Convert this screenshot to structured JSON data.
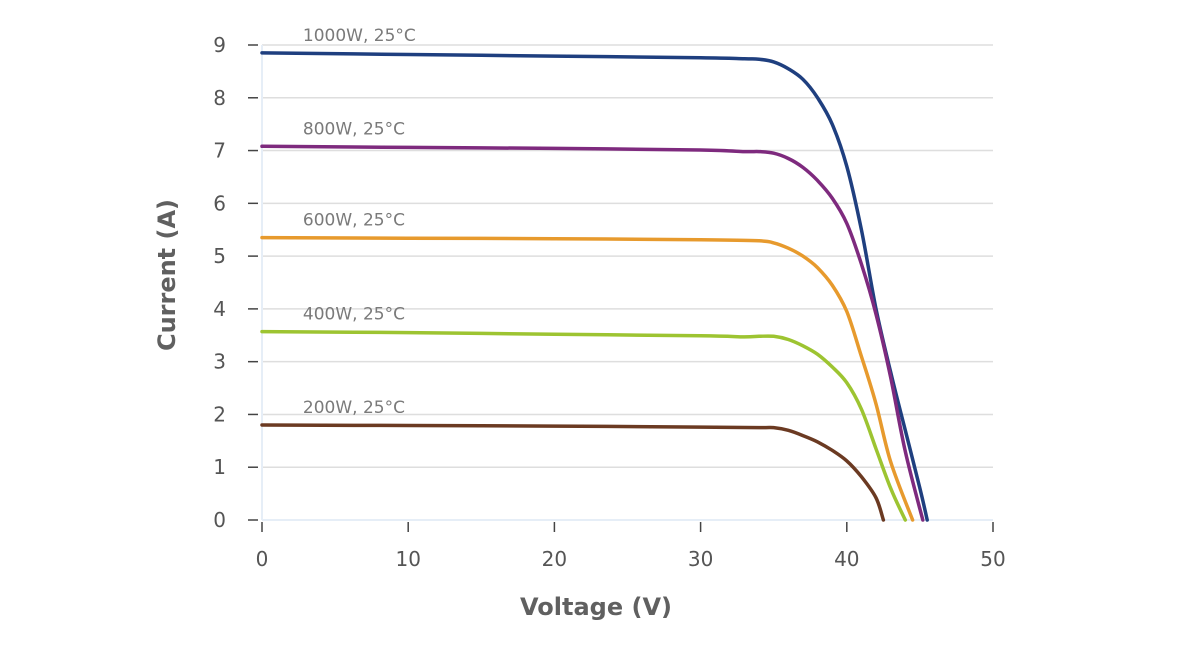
{
  "chart_data": {
    "type": "line",
    "title": "",
    "xlabel": "Voltage (V)",
    "ylabel": "Current (A)",
    "xlim": [
      0,
      50
    ],
    "ylim": [
      0,
      9
    ],
    "xticks": [
      0,
      10,
      20,
      30,
      40,
      50
    ],
    "yticks": [
      0,
      1,
      2,
      3,
      4,
      5,
      6,
      7,
      8,
      9
    ],
    "grid": "horizontal",
    "legend": "inline labels above each curve",
    "series": [
      {
        "name": "1000W, 25°C",
        "color": "#1f3f7f",
        "points": [
          [
            0,
            8.85
          ],
          [
            10,
            8.82
          ],
          [
            20,
            8.79
          ],
          [
            30,
            8.76
          ],
          [
            33,
            8.74
          ],
          [
            34,
            8.73
          ],
          [
            35,
            8.68
          ],
          [
            36,
            8.55
          ],
          [
            37,
            8.35
          ],
          [
            38,
            8.0
          ],
          [
            39,
            7.5
          ],
          [
            40,
            6.7
          ],
          [
            41,
            5.5
          ],
          [
            42,
            4.0
          ],
          [
            43,
            2.8
          ],
          [
            44,
            1.7
          ],
          [
            45,
            0.6
          ],
          [
            45.5,
            0
          ]
        ]
      },
      {
        "name": "800W, 25°C",
        "color": "#7e2a7e",
        "points": [
          [
            0,
            7.08
          ],
          [
            10,
            7.06
          ],
          [
            20,
            7.04
          ],
          [
            30,
            7.01
          ],
          [
            33,
            6.98
          ],
          [
            34,
            6.98
          ],
          [
            35,
            6.95
          ],
          [
            36,
            6.85
          ],
          [
            37,
            6.68
          ],
          [
            38,
            6.43
          ],
          [
            39,
            6.1
          ],
          [
            40,
            5.62
          ],
          [
            41,
            4.85
          ],
          [
            42,
            3.9
          ],
          [
            43,
            2.7
          ],
          [
            44,
            1.3
          ],
          [
            45.2,
            0
          ]
        ]
      },
      {
        "name": "600W, 25°C",
        "color": "#e79a2d",
        "points": [
          [
            0,
            5.35
          ],
          [
            10,
            5.34
          ],
          [
            20,
            5.33
          ],
          [
            30,
            5.31
          ],
          [
            34,
            5.29
          ],
          [
            35,
            5.25
          ],
          [
            36,
            5.15
          ],
          [
            37,
            5.0
          ],
          [
            38,
            4.78
          ],
          [
            39,
            4.45
          ],
          [
            40,
            3.95
          ],
          [
            41,
            3.1
          ],
          [
            42,
            2.2
          ],
          [
            43,
            1.1
          ],
          [
            44.5,
            0
          ]
        ]
      },
      {
        "name": "400W, 25°C",
        "color": "#9dc431",
        "points": [
          [
            0,
            3.57
          ],
          [
            10,
            3.55
          ],
          [
            20,
            3.52
          ],
          [
            30,
            3.49
          ],
          [
            33,
            3.47
          ],
          [
            34,
            3.48
          ],
          [
            35,
            3.48
          ],
          [
            36,
            3.42
          ],
          [
            37,
            3.3
          ],
          [
            38,
            3.14
          ],
          [
            39,
            2.9
          ],
          [
            40,
            2.6
          ],
          [
            41,
            2.1
          ],
          [
            42,
            1.35
          ],
          [
            43,
            0.6
          ],
          [
            44,
            0
          ]
        ]
      },
      {
        "name": "200W, 25°C",
        "color": "#6b3a22",
        "points": [
          [
            0,
            1.8
          ],
          [
            10,
            1.79
          ],
          [
            20,
            1.78
          ],
          [
            30,
            1.76
          ],
          [
            34,
            1.75
          ],
          [
            35,
            1.75
          ],
          [
            36,
            1.7
          ],
          [
            37,
            1.6
          ],
          [
            38,
            1.48
          ],
          [
            39,
            1.32
          ],
          [
            40,
            1.12
          ],
          [
            41,
            0.82
          ],
          [
            42,
            0.42
          ],
          [
            42.5,
            0
          ]
        ]
      }
    ]
  }
}
